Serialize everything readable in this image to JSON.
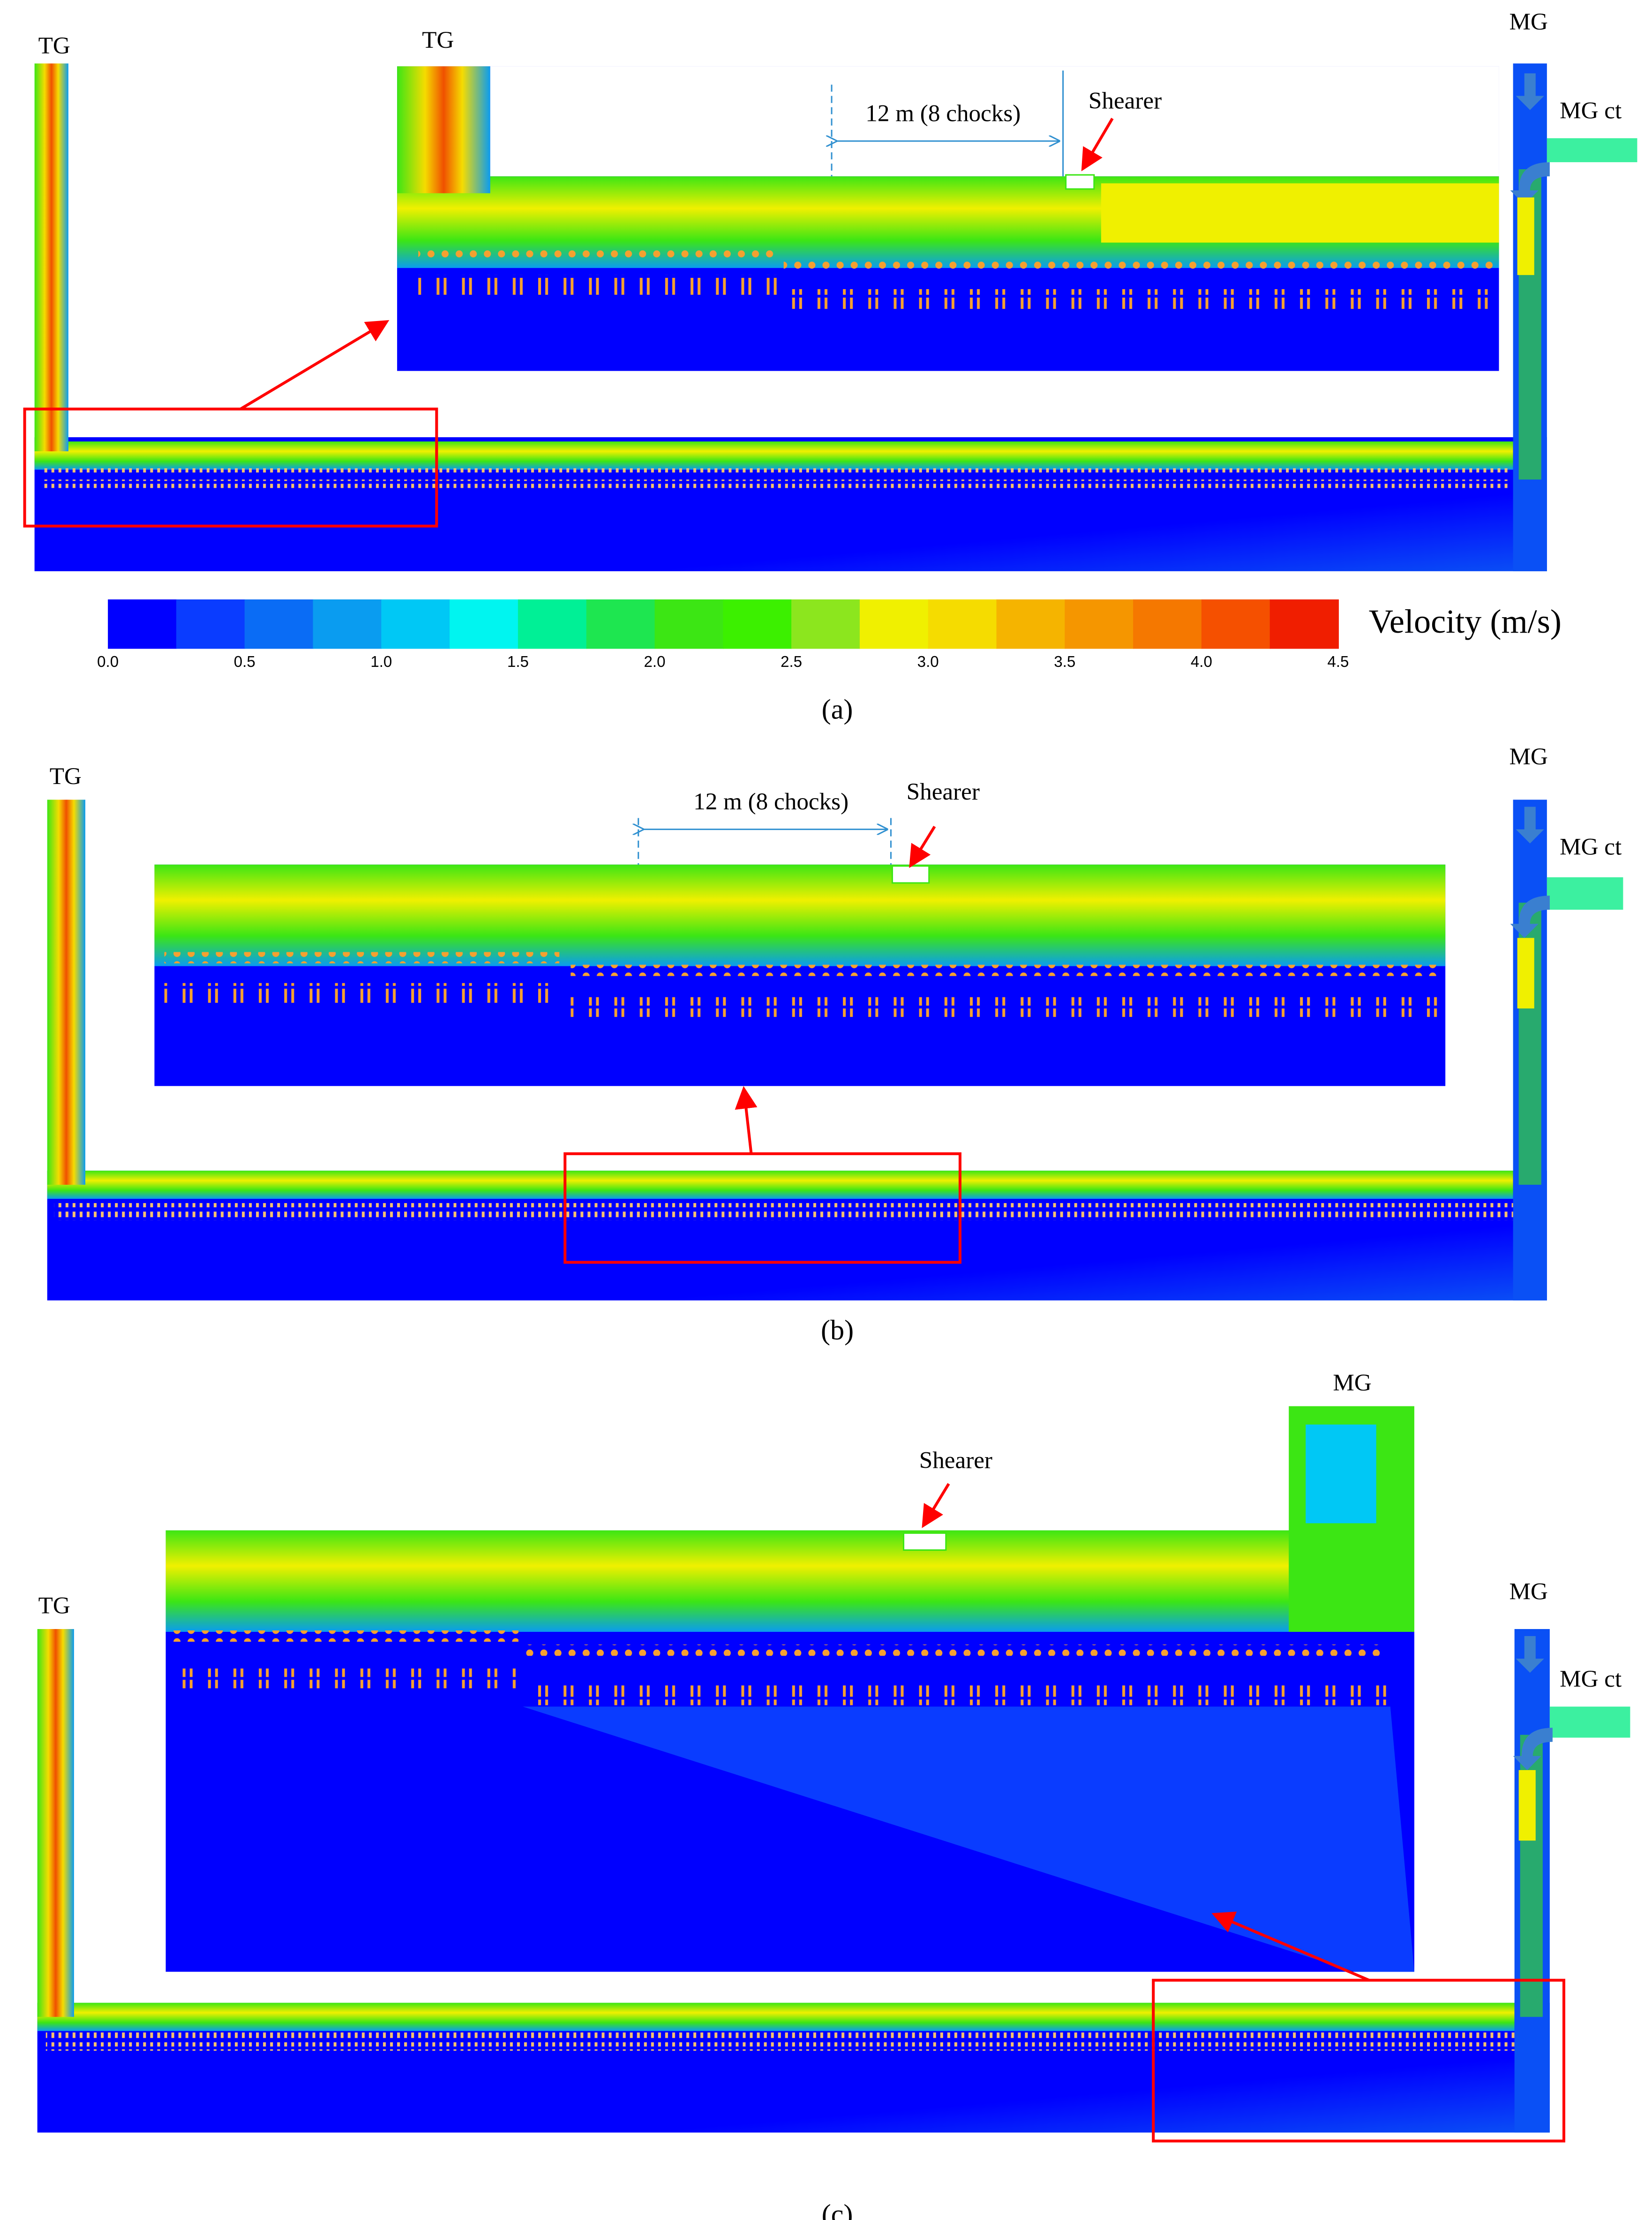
{
  "panels": [
    {
      "label": "(a)",
      "tg": "TG",
      "tg_inset": "TG",
      "mg": "MG",
      "mg_ct": "MG ct",
      "distance": "12 m (8 chocks)",
      "shearer": "Shearer"
    },
    {
      "label": "(b)",
      "tg": "TG",
      "mg": "MG",
      "mg_ct": "MG ct",
      "distance": "12 m (8 chocks)",
      "shearer": "Shearer"
    },
    {
      "label": "(c)",
      "tg": "TG",
      "mg_inset": "MG",
      "mg": "MG",
      "mg_ct": "MG ct",
      "shearer": "Shearer"
    }
  ],
  "colorbar": {
    "title": "Velocity (m/s)",
    "ticks": [
      "0.0",
      "0.5",
      "1.0",
      "1.5",
      "2.0",
      "2.5",
      "3.0",
      "3.5",
      "4.0",
      "4.5"
    ],
    "colors": [
      "#0000ff",
      "#0a3cff",
      "#0a6cf5",
      "#0a9cf0",
      "#00c8f5",
      "#00f5f0",
      "#00f096",
      "#1ee650",
      "#3ce614",
      "#3cf000",
      "#8ce61e",
      "#f0f000",
      "#f5dc00",
      "#f5b400",
      "#f59600",
      "#f57800",
      "#f55000",
      "#f01e00"
    ]
  }
}
